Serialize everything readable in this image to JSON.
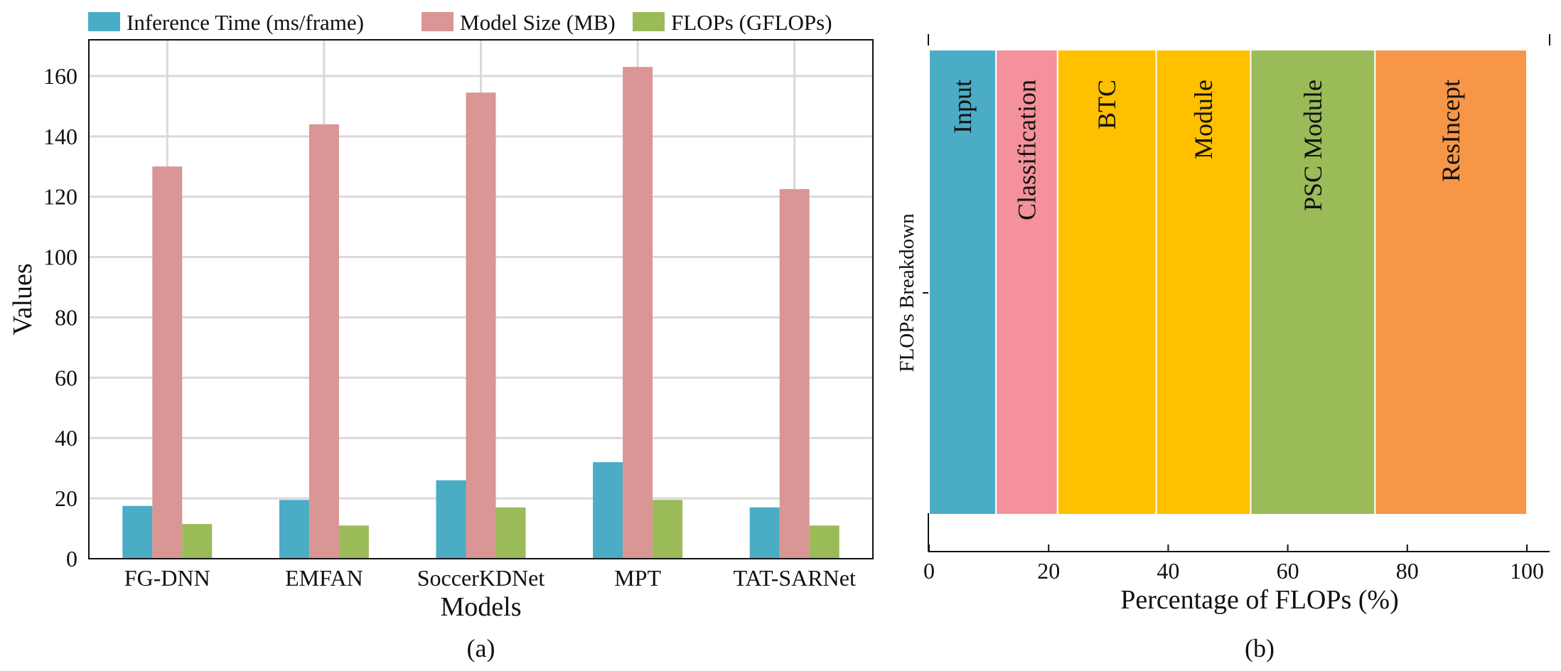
{
  "chart_data": [
    {
      "type": "bar",
      "caption": "(a)",
      "xlabel": "Models",
      "ylabel": "Values",
      "categories": [
        "FG-DNN",
        "EMFAN",
        "SoccerKDNet",
        "MPT",
        "TAT-SARNet"
      ],
      "series": [
        {
          "name": "Inference Time (ms/frame)",
          "color": "#4BACC6",
          "values": [
            17.5,
            19.5,
            26,
            32,
            17
          ]
        },
        {
          "name": "Model Size (MB)",
          "color": "#D99694",
          "values": [
            130,
            144,
            154.5,
            163,
            122.5
          ]
        },
        {
          "name": "FLOPs (GFLOPs)",
          "color": "#9BBB59",
          "values": [
            11.5,
            11,
            17,
            19.5,
            11
          ]
        }
      ],
      "ylim": [
        0,
        172
      ],
      "yticks": [
        0,
        20,
        40,
        60,
        80,
        100,
        120,
        140,
        160
      ],
      "grid": true,
      "legend": "top"
    },
    {
      "type": "bar",
      "orientation": "horizontal-stacked",
      "caption": "(b)",
      "xlabel": "Percentage of FLOPs (%)",
      "ylabel": "FLOPs Breakdown",
      "xlim": [
        0,
        100
      ],
      "xticks": [
        0,
        20,
        40,
        60,
        80,
        100
      ],
      "segments": [
        {
          "label": "Input",
          "start": 0,
          "end": 11.2,
          "color": "#4BACC6"
        },
        {
          "label": "Classification",
          "start": 11.2,
          "end": 21.5,
          "color": "#F4919B"
        },
        {
          "label": "BTC",
          "start": 21.5,
          "end": 38,
          "color": "#FFC000"
        },
        {
          "label": "Module",
          "start": 38,
          "end": 53.8,
          "color": "#FFC000"
        },
        {
          "label": "PSC Module",
          "start": 53.8,
          "end": 74.6,
          "color": "#9BBB59"
        },
        {
          "label": "ResIncept",
          "start": 74.6,
          "end": 100,
          "color": "#F79646"
        }
      ]
    }
  ]
}
